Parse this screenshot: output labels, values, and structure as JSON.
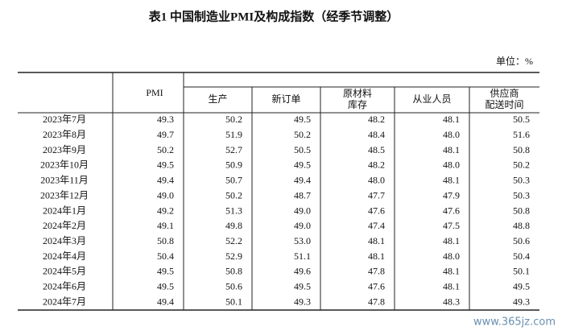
{
  "header": {
    "title": "表1 中国制造业PMI及构成指数（经季节调整）",
    "unit": "单位：%"
  },
  "table": {
    "columns": [
      [
        "PMI"
      ],
      [
        "生产"
      ],
      [
        "新订单"
      ],
      [
        "原材料",
        "库存"
      ],
      [
        "从业人员"
      ],
      [
        "供应商",
        "配送时间"
      ]
    ],
    "rows": [
      [
        "2023年7月",
        "49.3",
        "50.2",
        "49.5",
        "48.2",
        "48.1",
        "50.5"
      ],
      [
        "2023年8月",
        "49.7",
        "51.9",
        "50.2",
        "48.4",
        "48.0",
        "51.6"
      ],
      [
        "2023年9月",
        "50.2",
        "52.7",
        "50.5",
        "48.5",
        "48.1",
        "50.8"
      ],
      [
        "2023年10月",
        "49.5",
        "50.9",
        "49.5",
        "48.2",
        "48.0",
        "50.2"
      ],
      [
        "2023年11月",
        "49.4",
        "50.7",
        "49.4",
        "48.0",
        "48.1",
        "50.3"
      ],
      [
        "2023年12月",
        "49.0",
        "50.2",
        "48.7",
        "47.7",
        "47.9",
        "50.3"
      ],
      [
        "2024年1月",
        "49.2",
        "51.3",
        "49.0",
        "47.6",
        "47.6",
        "50.8"
      ],
      [
        "2024年2月",
        "49.1",
        "49.8",
        "49.0",
        "47.4",
        "47.5",
        "48.8"
      ],
      [
        "2024年3月",
        "50.8",
        "52.2",
        "53.0",
        "48.1",
        "48.1",
        "50.6"
      ],
      [
        "2024年4月",
        "50.4",
        "52.9",
        "51.1",
        "48.1",
        "48.0",
        "50.4"
      ],
      [
        "2024年5月",
        "49.5",
        "50.8",
        "49.6",
        "47.8",
        "48.1",
        "50.1"
      ],
      [
        "2024年6月",
        "49.5",
        "50.6",
        "49.5",
        "47.6",
        "48.1",
        "49.5"
      ],
      [
        "2024年7月",
        "49.4",
        "50.1",
        "49.3",
        "47.8",
        "48.3",
        "49.3"
      ]
    ]
  },
  "watermark": "www.365jz.com"
}
